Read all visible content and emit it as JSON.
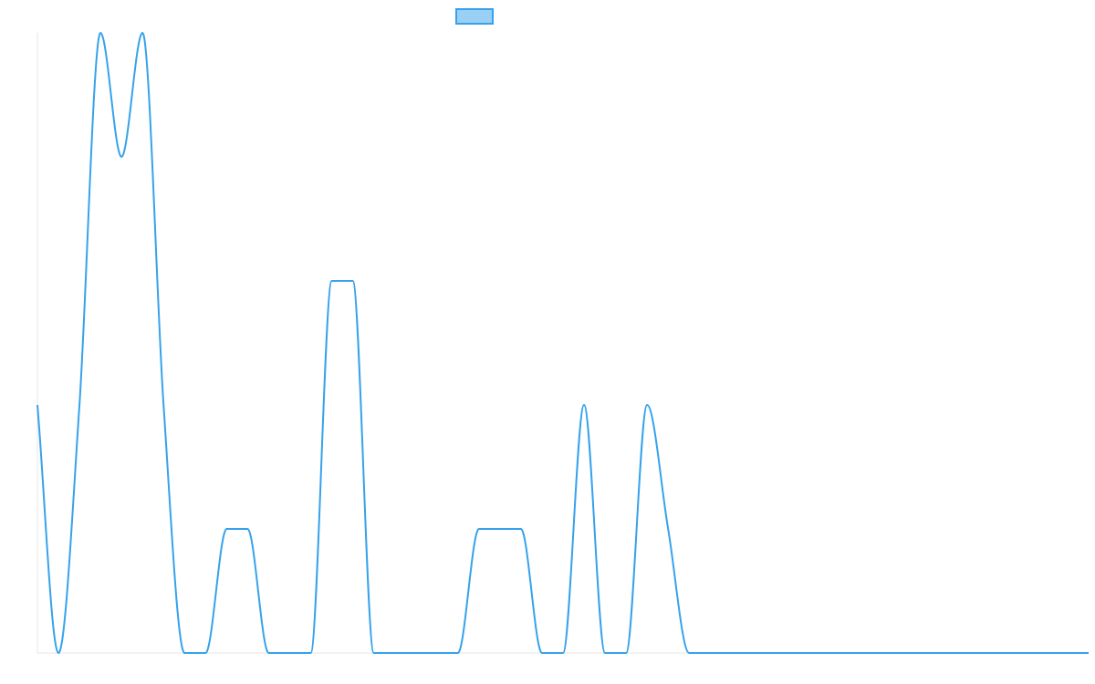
{
  "chart_data": {
    "type": "line",
    "title": "",
    "xlabel": "",
    "ylabel": "",
    "legend": {
      "placement": "top-center",
      "entries": [
        {
          "name": ""
        }
      ]
    },
    "grid": false,
    "xlim": [
      0,
      50
    ],
    "ylim": [
      0,
      5
    ],
    "series": [
      {
        "name": "",
        "color": "#36a2eb",
        "fill": "#9ad0f5",
        "smooth": true,
        "x": [
          0,
          1,
          2,
          3,
          4,
          5,
          6,
          7,
          8,
          9,
          10,
          11,
          12,
          13,
          14,
          15,
          16,
          17,
          18,
          19,
          20,
          21,
          22,
          23,
          24,
          25,
          26,
          27,
          28,
          29,
          30,
          31,
          32,
          33,
          34,
          35,
          36,
          37,
          38,
          39,
          40,
          41,
          42,
          43,
          44,
          45,
          46,
          47,
          48,
          49,
          50
        ],
        "values": [
          2,
          0,
          2,
          5,
          4,
          5,
          2,
          0,
          0,
          1,
          1,
          0,
          0,
          0,
          3,
          3,
          0,
          0,
          0,
          0,
          0,
          1,
          1,
          1,
          0,
          0,
          2,
          0,
          0,
          2,
          1,
          0,
          0,
          0,
          0,
          0,
          0,
          0,
          0,
          0,
          0,
          0,
          0,
          0,
          0,
          0,
          0,
          0,
          0,
          0,
          0
        ]
      }
    ]
  }
}
